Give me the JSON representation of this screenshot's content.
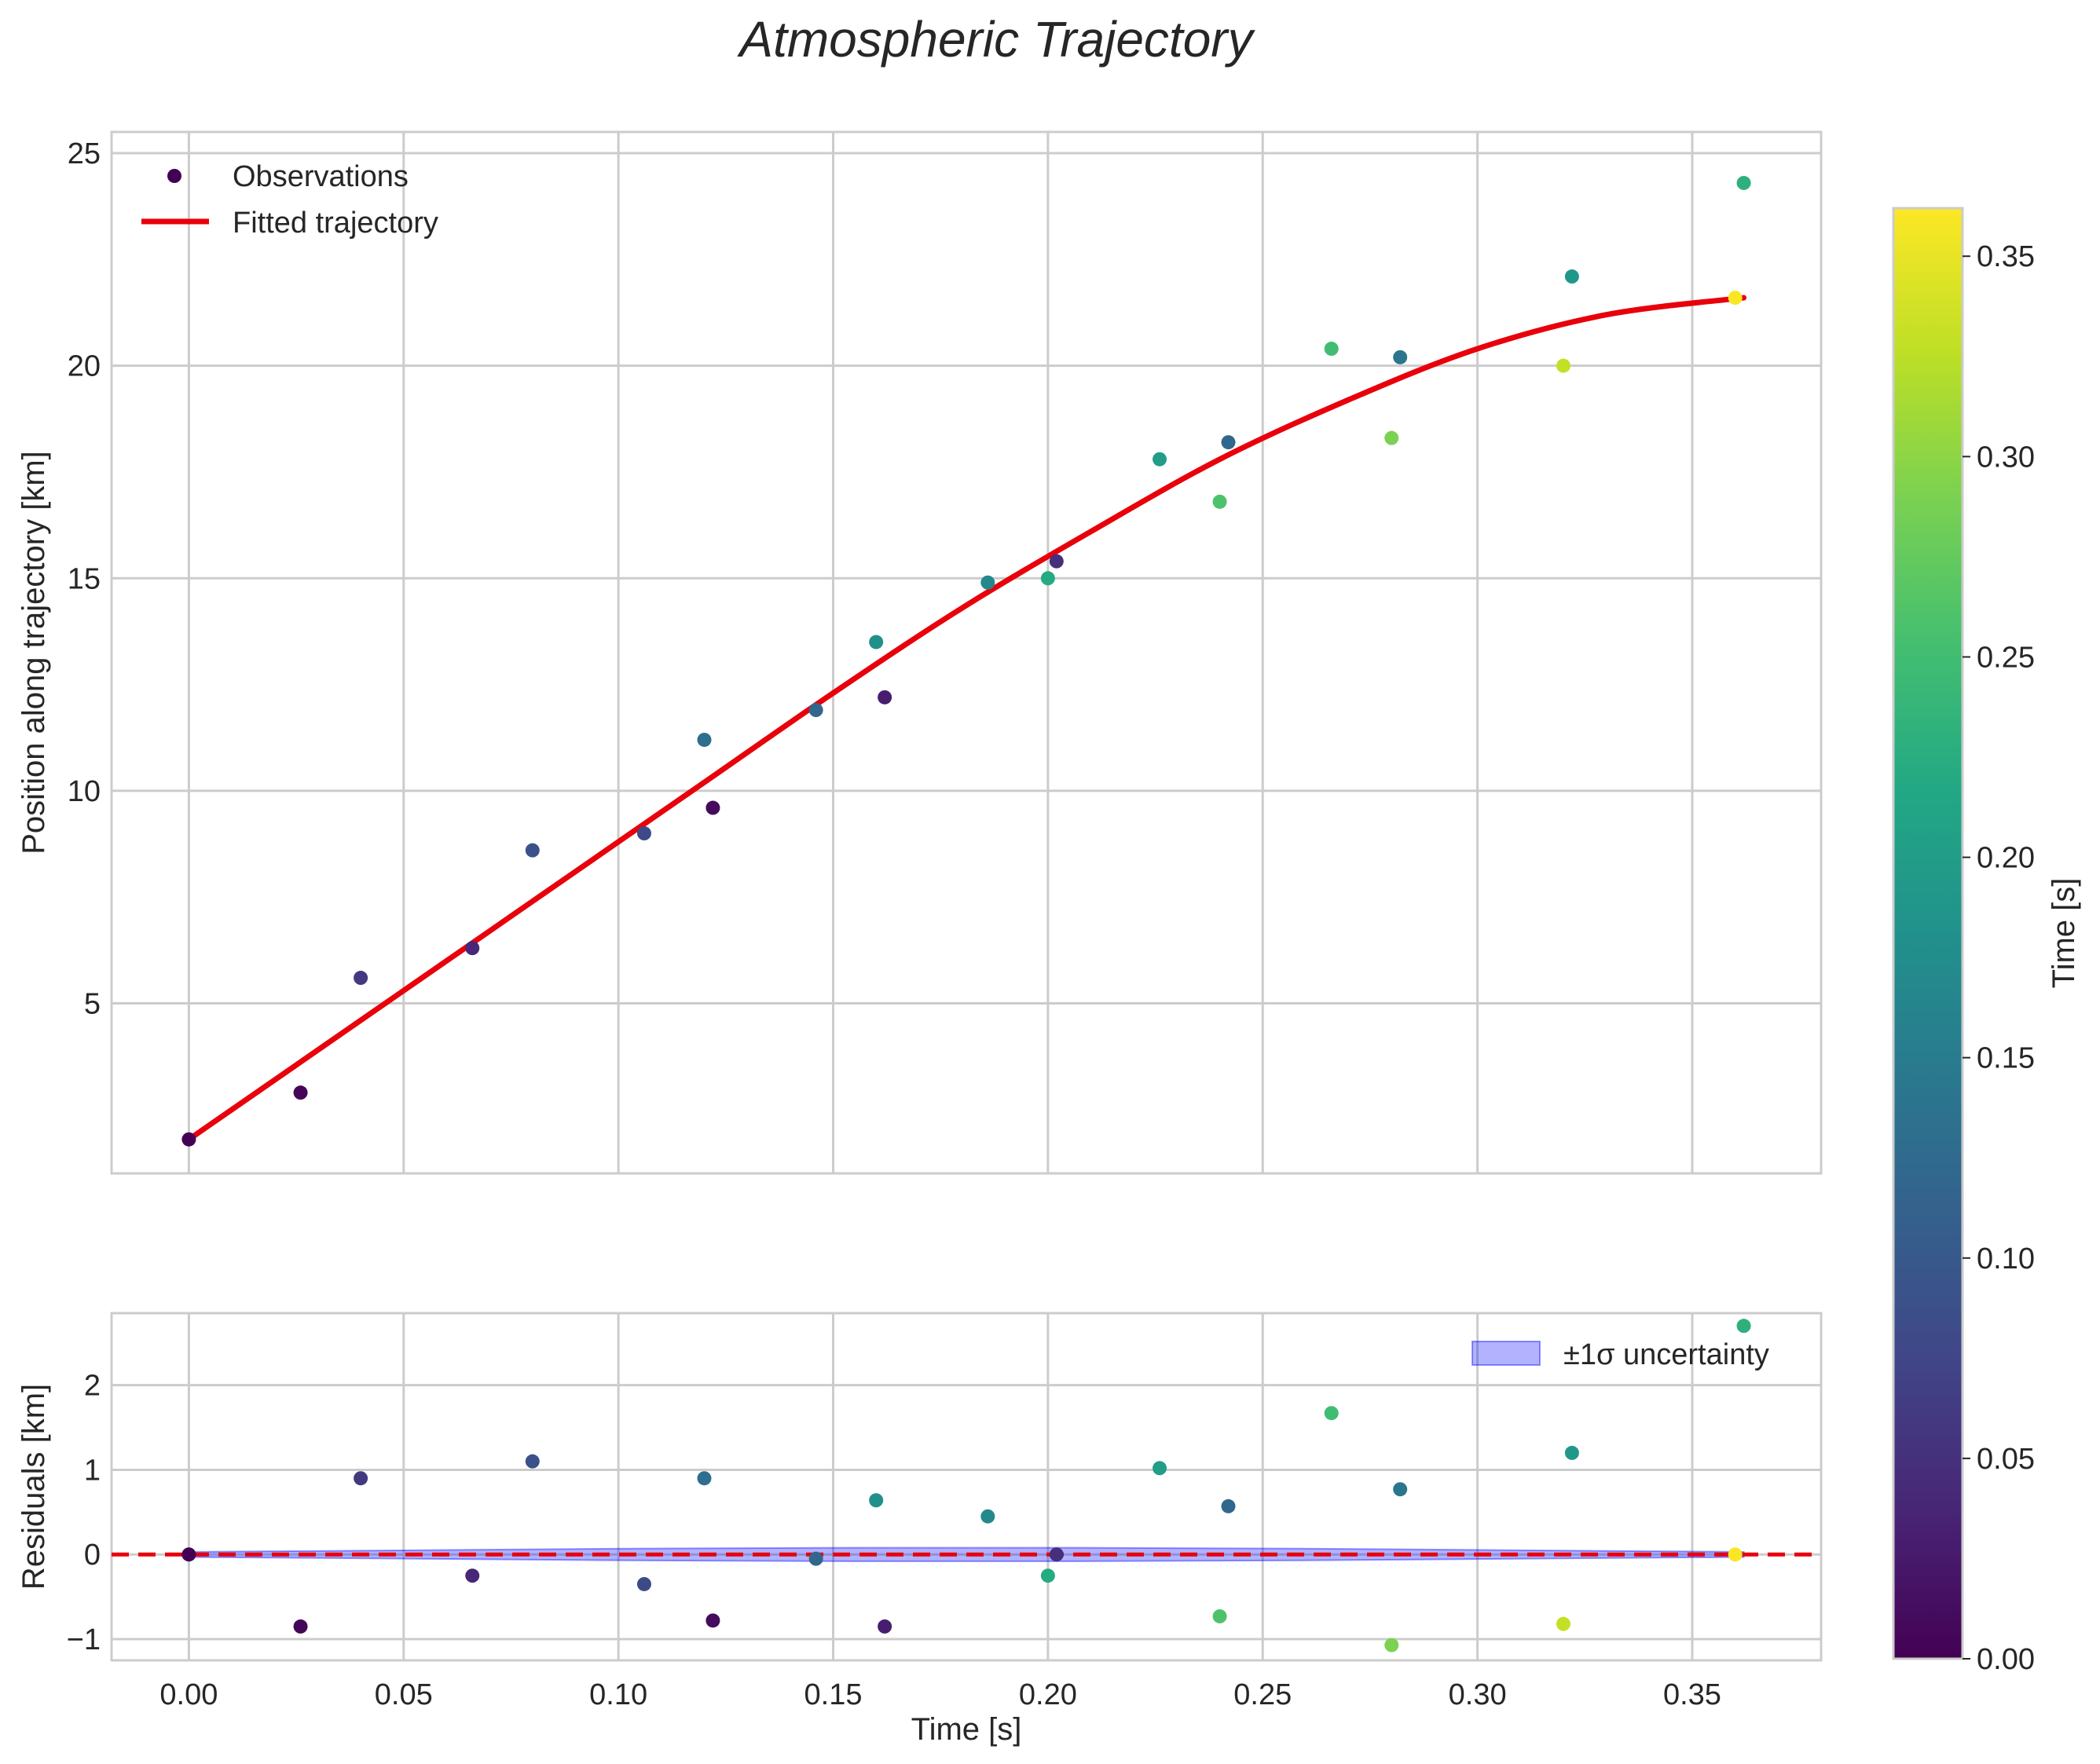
{
  "title": "Atmospheric Trajectory",
  "chart_data": [
    {
      "type": "scatter",
      "panel": "top",
      "xlabel": "",
      "ylabel": "Position along trajectory [km]",
      "xlim": [
        -0.018,
        0.38
      ],
      "ylim": [
        1.0,
        25.5
      ],
      "yticks": [
        5,
        10,
        15,
        20,
        25
      ],
      "grid": true,
      "legend": {
        "position": "top-left",
        "entries": [
          "Observations",
          "Fitted trajectory"
        ]
      },
      "series": [
        {
          "name": "Observations",
          "kind": "scatter",
          "colormap": "viridis",
          "x": [
            0.0,
            0.026,
            0.04,
            0.066,
            0.08,
            0.106,
            0.12,
            0.122,
            0.146,
            0.16,
            0.162,
            0.186,
            0.2,
            0.202,
            0.226,
            0.24,
            0.242,
            0.266,
            0.28,
            0.282,
            0.32,
            0.322,
            0.36,
            0.362
          ],
          "y": [
            1.8,
            2.9,
            5.6,
            6.3,
            8.6,
            9.0,
            11.2,
            9.6,
            11.9,
            13.5,
            12.2,
            14.9,
            15.0,
            15.4,
            17.8,
            16.8,
            18.2,
            20.4,
            18.3,
            20.2,
            20.0,
            22.1,
            21.6,
            24.3
          ],
          "c": [
            0.0,
            0.005,
            0.06,
            0.04,
            0.09,
            0.08,
            0.13,
            0.01,
            0.12,
            0.18,
            0.03,
            0.17,
            0.22,
            0.05,
            0.2,
            0.26,
            0.12,
            0.25,
            0.29,
            0.14,
            0.33,
            0.19,
            0.36,
            0.23
          ]
        },
        {
          "name": "Fitted trajectory",
          "kind": "line",
          "color": "#e8000b",
          "x": [
            0.0,
            0.03,
            0.06,
            0.09,
            0.12,
            0.15,
            0.18,
            0.21,
            0.24,
            0.27,
            0.3,
            0.33,
            0.362
          ],
          "y": [
            1.8,
            3.9,
            6.0,
            8.1,
            10.2,
            12.3,
            14.3,
            16.1,
            17.8,
            19.2,
            20.4,
            21.2,
            21.6
          ]
        }
      ]
    },
    {
      "type": "scatter",
      "panel": "bottom",
      "xlabel": "Time [s]",
      "ylabel": "Residuals [km]",
      "xlim": [
        -0.018,
        0.38
      ],
      "ylim": [
        -1.25,
        2.85
      ],
      "xticks": [
        "0.00",
        "0.05",
        "0.10",
        "0.15",
        "0.20",
        "0.25",
        "0.30",
        "0.35"
      ],
      "yticks": [
        -1,
        0,
        1,
        2
      ],
      "grid": true,
      "legend": {
        "position": "top-right",
        "entries": [
          "±1σ uncertainty"
        ]
      },
      "reference_line": {
        "y": 0,
        "style": "dashed",
        "color": "#e8000b"
      },
      "band": {
        "name": "±1σ uncertainty",
        "x": [
          0.0,
          0.362
        ],
        "halfwidth": [
          0.03,
          0.05,
          0.07,
          0.08,
          0.08,
          0.07,
          0.05,
          0.03
        ]
      },
      "series": [
        {
          "name": "Residuals",
          "kind": "scatter",
          "colormap": "viridis",
          "x": [
            0.0,
            0.026,
            0.04,
            0.066,
            0.08,
            0.106,
            0.12,
            0.122,
            0.146,
            0.16,
            0.162,
            0.186,
            0.2,
            0.202,
            0.226,
            0.24,
            0.242,
            0.266,
            0.28,
            0.282,
            0.32,
            0.322,
            0.36,
            0.362
          ],
          "y": [
            0.0,
            -0.85,
            0.9,
            -0.25,
            1.1,
            -0.35,
            0.9,
            -0.78,
            -0.05,
            0.64,
            -0.85,
            0.45,
            -0.25,
            0.0,
            1.02,
            -0.73,
            0.57,
            1.67,
            -1.07,
            0.77,
            -0.82,
            1.2,
            0.0,
            2.7
          ],
          "c": [
            0.0,
            0.005,
            0.06,
            0.04,
            0.09,
            0.08,
            0.13,
            0.01,
            0.12,
            0.18,
            0.03,
            0.17,
            0.22,
            0.05,
            0.2,
            0.26,
            0.12,
            0.25,
            0.29,
            0.14,
            0.33,
            0.19,
            0.36,
            0.23
          ]
        }
      ]
    }
  ],
  "colorbar": {
    "label": "Time [s]",
    "colormap": "viridis",
    "range": [
      0.0,
      0.362
    ],
    "ticks": [
      "0.00",
      "0.05",
      "0.10",
      "0.15",
      "0.20",
      "0.25",
      "0.30",
      "0.35"
    ]
  }
}
